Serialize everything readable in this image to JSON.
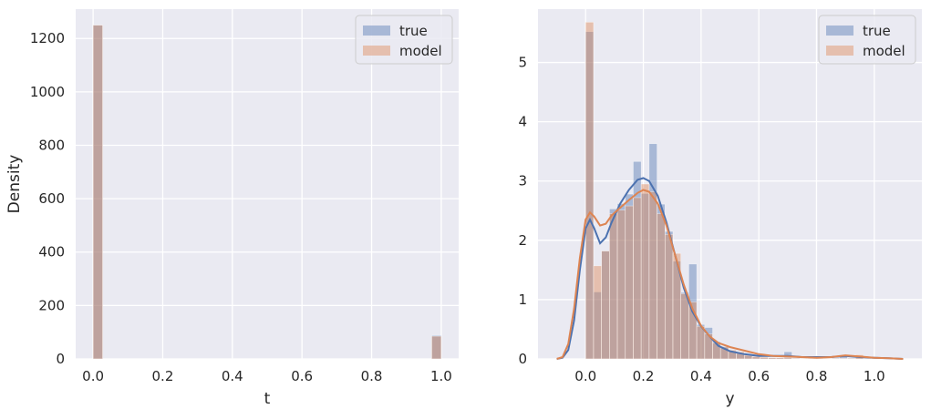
{
  "colors": {
    "panel_bg": "#EAEAF2",
    "grid": "#FFFFFF",
    "true": "#4C72B0",
    "model": "#DD8452",
    "text": "#262626"
  },
  "chart_data": [
    {
      "type": "bar",
      "title": "",
      "xlabel": "t",
      "ylabel": "Density",
      "xlim": [
        -0.05,
        1.05
      ],
      "ylim": [
        0,
        1310
      ],
      "xticks": [
        0.0,
        0.2,
        0.4,
        0.6,
        0.8,
        1.0
      ],
      "xtick_labels": [
        "0.0",
        "0.2",
        "0.4",
        "0.6",
        "0.8",
        "1.0"
      ],
      "yticks": [
        0,
        200,
        400,
        600,
        800,
        1000,
        1200
      ],
      "ytick_labels": [
        "0",
        "200",
        "400",
        "600",
        "800",
        "1000",
        "1200"
      ],
      "grid": true,
      "legend": {
        "position": "top-right",
        "entries": [
          "true",
          "model"
        ]
      },
      "bin_width": 0.0275,
      "series": [
        {
          "name": "true",
          "color": "#4C72B0",
          "bins": [
            [
              0.0,
              1250
            ],
            [
              0.9725,
              88
            ]
          ]
        },
        {
          "name": "model",
          "color": "#DD8452",
          "bins": [
            [
              0.0,
              1250
            ],
            [
              0.9725,
              85
            ]
          ]
        }
      ]
    },
    {
      "type": "bar",
      "title": "",
      "xlabel": "y",
      "ylabel": "",
      "xlim": [
        -0.165,
        1.165
      ],
      "ylim": [
        0,
        5.9
      ],
      "xticks": [
        0.0,
        0.2,
        0.4,
        0.6,
        0.8,
        1.0
      ],
      "xtick_labels": [
        "0.0",
        "0.2",
        "0.4",
        "0.6",
        "0.8",
        "1.0"
      ],
      "yticks": [
        0,
        1,
        2,
        3,
        4,
        5
      ],
      "ytick_labels": [
        "0",
        "1",
        "2",
        "3",
        "4",
        "5"
      ],
      "grid": true,
      "legend": {
        "position": "top-right",
        "entries": [
          "true",
          "model"
        ]
      },
      "bin_width": 0.0275,
      "series": [
        {
          "name": "true",
          "color": "#4C72B0",
          "hist": [
            [
              0.0,
              5.52
            ],
            [
              0.0275,
              1.13
            ],
            [
              0.055,
              1.82
            ],
            [
              0.0825,
              2.53
            ],
            [
              0.11,
              2.62
            ],
            [
              0.1375,
              2.78
            ],
            [
              0.165,
              3.33
            ],
            [
              0.1925,
              2.79
            ],
            [
              0.22,
              3.63
            ],
            [
              0.2475,
              2.61
            ],
            [
              0.275,
              2.15
            ],
            [
              0.3025,
              1.65
            ],
            [
              0.33,
              1.12
            ],
            [
              0.3575,
              1.6
            ],
            [
              0.385,
              0.58
            ],
            [
              0.4125,
              0.53
            ],
            [
              0.44,
              0.29
            ],
            [
              0.4675,
              0.21
            ],
            [
              0.495,
              0.13
            ],
            [
              0.5225,
              0.09
            ],
            [
              0.55,
              0.05
            ],
            [
              0.5775,
              0.03
            ],
            [
              0.605,
              0.02
            ],
            [
              0.6325,
              0.02
            ],
            [
              0.66,
              0.02
            ],
            [
              0.6875,
              0.12
            ],
            [
              0.715,
              0.02
            ],
            [
              0.7425,
              0.01
            ],
            [
              0.77,
              0.01
            ],
            [
              0.7975,
              0.01
            ],
            [
              0.825,
              0.01
            ],
            [
              0.8525,
              0.02
            ],
            [
              0.88,
              0.05
            ],
            [
              0.9075,
              0.02
            ],
            [
              0.935,
              0.02
            ],
            [
              0.9625,
              0.01
            ],
            [
              0.99,
              0.01
            ],
            [
              1.0175,
              0.01
            ],
            [
              1.045,
              0.01
            ],
            [
              1.0725,
              0.02
            ]
          ],
          "kde": [
            [
              -0.1,
              0.0
            ],
            [
              -0.08,
              0.02
            ],
            [
              -0.06,
              0.15
            ],
            [
              -0.04,
              0.65
            ],
            [
              -0.02,
              1.5
            ],
            [
              0.0,
              2.2
            ],
            [
              0.015,
              2.35
            ],
            [
              0.03,
              2.2
            ],
            [
              0.05,
              1.95
            ],
            [
              0.07,
              2.05
            ],
            [
              0.09,
              2.3
            ],
            [
              0.12,
              2.62
            ],
            [
              0.15,
              2.85
            ],
            [
              0.18,
              3.02
            ],
            [
              0.2,
              3.05
            ],
            [
              0.22,
              3.0
            ],
            [
              0.25,
              2.75
            ],
            [
              0.28,
              2.3
            ],
            [
              0.31,
              1.75
            ],
            [
              0.34,
              1.2
            ],
            [
              0.37,
              0.8
            ],
            [
              0.4,
              0.55
            ],
            [
              0.43,
              0.38
            ],
            [
              0.46,
              0.22
            ],
            [
              0.5,
              0.13
            ],
            [
              0.55,
              0.08
            ],
            [
              0.6,
              0.05
            ],
            [
              0.65,
              0.05
            ],
            [
              0.7,
              0.05
            ],
            [
              0.75,
              0.03
            ],
            [
              0.8,
              0.03
            ],
            [
              0.85,
              0.03
            ],
            [
              0.9,
              0.05
            ],
            [
              0.95,
              0.03
            ],
            [
              1.0,
              0.02
            ],
            [
              1.05,
              0.01
            ],
            [
              1.1,
              0.0
            ]
          ]
        },
        {
          "name": "model",
          "color": "#DD8452",
          "hist": [
            [
              0.0,
              5.68
            ],
            [
              0.0275,
              1.57
            ],
            [
              0.055,
              1.82
            ],
            [
              0.0825,
              2.45
            ],
            [
              0.11,
              2.51
            ],
            [
              0.1375,
              2.58
            ],
            [
              0.165,
              2.72
            ],
            [
              0.1925,
              2.95
            ],
            [
              0.22,
              2.82
            ],
            [
              0.2475,
              2.45
            ],
            [
              0.275,
              2.1
            ],
            [
              0.3025,
              1.78
            ],
            [
              0.33,
              1.1
            ],
            [
              0.3575,
              0.96
            ],
            [
              0.385,
              0.55
            ],
            [
              0.4125,
              0.42
            ],
            [
              0.44,
              0.27
            ],
            [
              0.4675,
              0.2
            ],
            [
              0.495,
              0.15
            ],
            [
              0.5225,
              0.12
            ],
            [
              0.55,
              0.07
            ],
            [
              0.5775,
              0.04
            ],
            [
              0.605,
              0.03
            ],
            [
              0.6325,
              0.02
            ],
            [
              0.66,
              0.02
            ],
            [
              0.6875,
              0.02
            ],
            [
              0.715,
              0.01
            ],
            [
              0.7425,
              0.01
            ],
            [
              0.77,
              0.01
            ],
            [
              0.7975,
              0.01
            ],
            [
              0.825,
              0.01
            ],
            [
              0.8525,
              0.01
            ],
            [
              0.88,
              0.01
            ],
            [
              0.9075,
              0.01
            ],
            [
              0.935,
              0.07
            ],
            [
              0.9625,
              0.01
            ],
            [
              0.99,
              0.01
            ],
            [
              1.0175,
              0.01
            ]
          ],
          "kde": [
            [
              -0.1,
              0.0
            ],
            [
              -0.08,
              0.03
            ],
            [
              -0.06,
              0.25
            ],
            [
              -0.04,
              0.85
            ],
            [
              -0.02,
              1.7
            ],
            [
              0.0,
              2.35
            ],
            [
              0.015,
              2.47
            ],
            [
              0.03,
              2.4
            ],
            [
              0.05,
              2.25
            ],
            [
              0.07,
              2.28
            ],
            [
              0.09,
              2.42
            ],
            [
              0.12,
              2.55
            ],
            [
              0.15,
              2.68
            ],
            [
              0.18,
              2.8
            ],
            [
              0.2,
              2.85
            ],
            [
              0.22,
              2.82
            ],
            [
              0.25,
              2.62
            ],
            [
              0.28,
              2.25
            ],
            [
              0.31,
              1.75
            ],
            [
              0.34,
              1.25
            ],
            [
              0.37,
              0.85
            ],
            [
              0.4,
              0.56
            ],
            [
              0.43,
              0.38
            ],
            [
              0.46,
              0.27
            ],
            [
              0.5,
              0.2
            ],
            [
              0.55,
              0.14
            ],
            [
              0.6,
              0.08
            ],
            [
              0.65,
              0.05
            ],
            [
              0.7,
              0.04
            ],
            [
              0.75,
              0.03
            ],
            [
              0.8,
              0.02
            ],
            [
              0.85,
              0.03
            ],
            [
              0.9,
              0.06
            ],
            [
              0.95,
              0.04
            ],
            [
              1.0,
              0.02
            ],
            [
              1.05,
              0.01
            ],
            [
              1.1,
              0.0
            ]
          ]
        }
      ]
    }
  ]
}
